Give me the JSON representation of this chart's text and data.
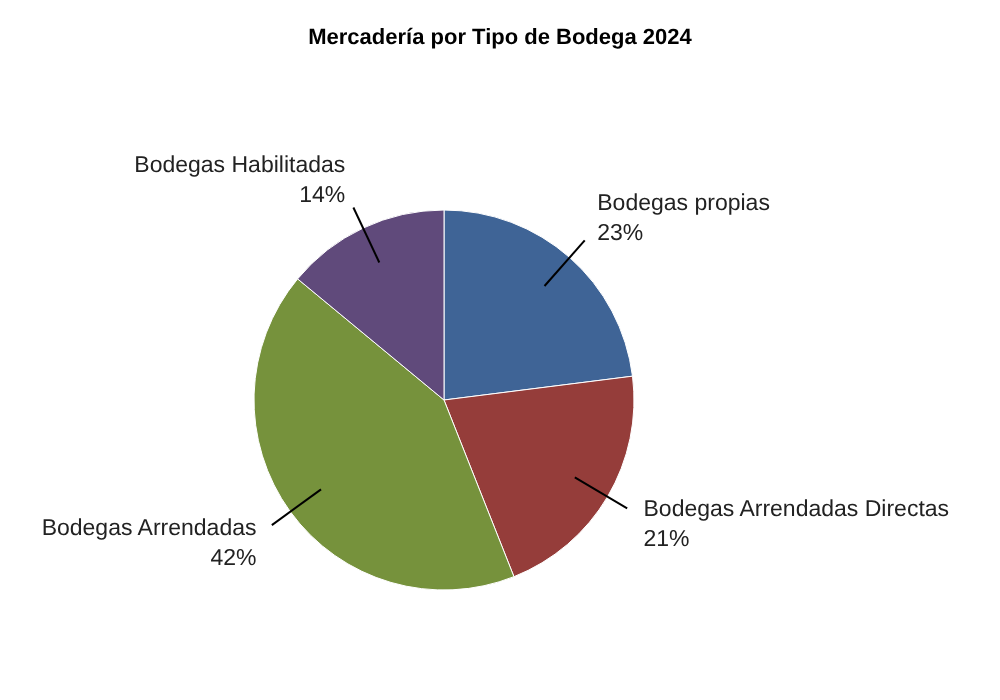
{
  "chart_data": {
    "type": "pie",
    "title": "Mercadería por Tipo de Bodega 2024",
    "categories": [
      "Bodegas propias",
      "Bodegas Arrendadas Directas",
      "Bodegas Arrendadas",
      "Bodegas Habilitadas"
    ],
    "values": [
      23,
      21,
      42,
      14
    ],
    "value_labels": [
      "23%",
      "21%",
      "42%",
      "14%"
    ],
    "colors": [
      "#3f6496",
      "#953d3a",
      "#76923c",
      "#604a7b"
    ]
  }
}
